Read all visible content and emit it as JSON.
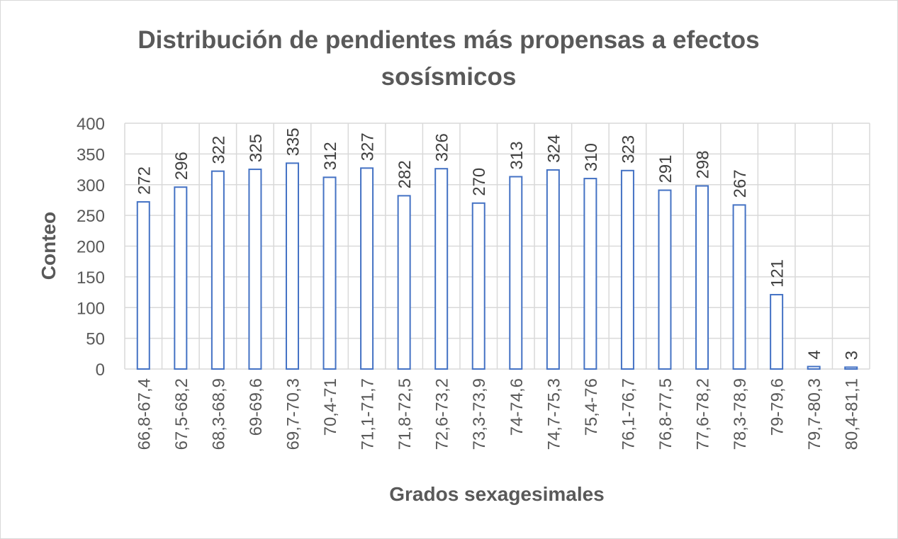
{
  "chart_data": {
    "type": "bar",
    "title_lines": [
      "Distribución de pendientes más propensas a efectos",
      "sosísmicos"
    ],
    "xlabel": "Grados sexagesimales",
    "ylabel": "Conteo",
    "ylim": [
      0,
      400
    ],
    "yticks": [
      0,
      50,
      100,
      150,
      200,
      250,
      300,
      350,
      400
    ],
    "grid": true,
    "categories": [
      "66,8-67,4",
      "67,5-68,2",
      "68,3-68,9",
      "69-69,6",
      "69,7-70,3",
      "70,4-71",
      "71,1-71,7",
      "71,8-72,5",
      "72,6-73,2",
      "73,3-73,9",
      "74-74,6",
      "74,7-75,3",
      "75,4-76",
      "76,1-76,7",
      "76,8-77,5",
      "77,6-78,2",
      "78,3-78,9",
      "79-79,6",
      "79,7-80,3",
      "80,4-81,1"
    ],
    "values": [
      272,
      296,
      322,
      325,
      335,
      312,
      327,
      282,
      326,
      270,
      313,
      324,
      310,
      323,
      291,
      298,
      267,
      121,
      4,
      3
    ],
    "colors": {
      "bar_fill": "#ffffff",
      "bar_stroke": "#4472c4",
      "grid": "#d9d9d9",
      "text": "#595959"
    }
  }
}
